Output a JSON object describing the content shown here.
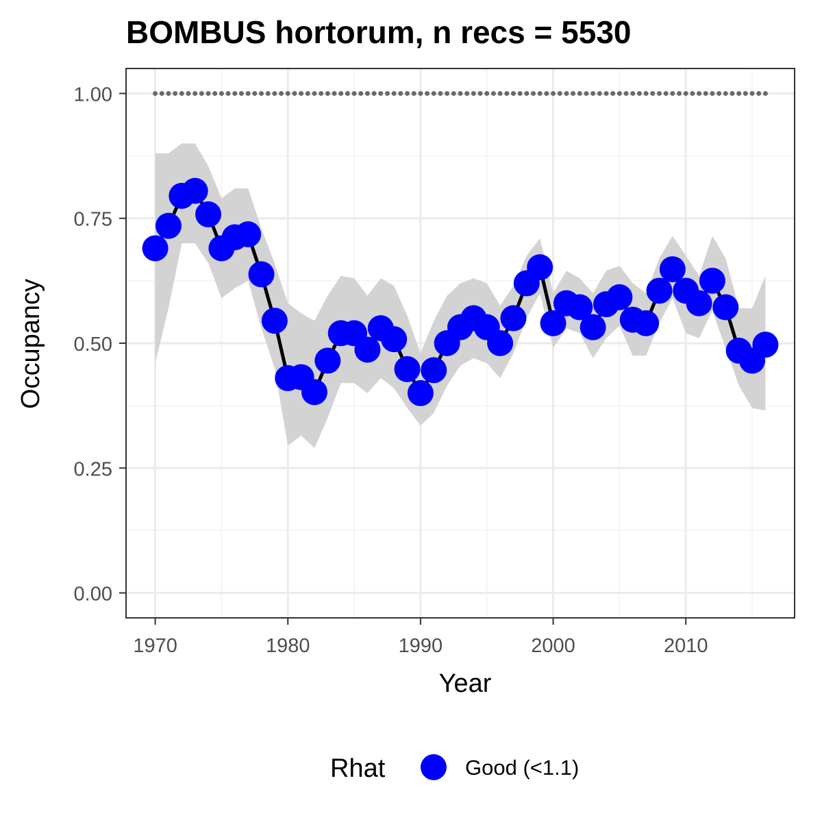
{
  "chart_data": {
    "type": "line",
    "title": "BOMBUS hortorum, n recs = 5530",
    "xlabel": "Year",
    "ylabel": "Occupancy",
    "xlim": [
      1967.8,
      2018.2
    ],
    "ylim": [
      -0.05,
      1.05
    ],
    "x_ticks": [
      1970,
      1980,
      1990,
      2000,
      2010
    ],
    "y_ticks": [
      0,
      0.25,
      0.5,
      0.75,
      1
    ],
    "y_tick_labels": [
      "0.00",
      "0.25",
      "0.50",
      "0.75",
      "1.00"
    ],
    "grid": true,
    "legend": {
      "title": "Rhat",
      "position": "bottom",
      "entries": [
        {
          "label": "Good (<1.1)",
          "color": "#0000ff"
        }
      ]
    },
    "colors": {
      "points": "#0000ff",
      "line": "#000000",
      "ribbon": "#d3d3d3",
      "reference": "#696969"
    },
    "years": [
      1970,
      1971,
      1972,
      1973,
      1974,
      1975,
      1976,
      1977,
      1978,
      1979,
      1980,
      1981,
      1982,
      1983,
      1984,
      1985,
      1986,
      1987,
      1988,
      1989,
      1990,
      1991,
      1992,
      1993,
      1994,
      1995,
      1996,
      1997,
      1998,
      1999,
      2000,
      2001,
      2002,
      2003,
      2004,
      2005,
      2006,
      2007,
      2008,
      2009,
      2010,
      2011,
      2012,
      2013,
      2014,
      2015,
      2016
    ],
    "series": [
      {
        "values": [
          0.69,
          0.735,
          0.795,
          0.805,
          0.758,
          0.69,
          0.712,
          0.718,
          0.638,
          0.545,
          0.43,
          0.432,
          0.402,
          0.465,
          0.52,
          0.52,
          0.487,
          0.53,
          0.508,
          0.448,
          0.4,
          0.446,
          0.5,
          0.532,
          0.55,
          0.532,
          0.5,
          0.55,
          0.62,
          0.652,
          0.54,
          0.58,
          0.572,
          0.532,
          0.578,
          0.592,
          0.547,
          0.54,
          0.605,
          0.648,
          0.605,
          0.58,
          0.625,
          0.572,
          0.485,
          0.465,
          0.497
        ]
      },
      {
        "values": [
          0.88,
          0.88,
          0.9,
          0.9,
          0.855,
          0.79,
          0.81,
          0.81,
          0.73,
          0.66,
          0.58,
          0.56,
          0.545,
          0.595,
          0.635,
          0.63,
          0.595,
          0.63,
          0.615,
          0.555,
          0.48,
          0.545,
          0.595,
          0.62,
          0.63,
          0.62,
          0.575,
          0.615,
          0.675,
          0.71,
          0.6,
          0.645,
          0.63,
          0.6,
          0.645,
          0.655,
          0.62,
          0.6,
          0.67,
          0.715,
          0.675,
          0.635,
          0.715,
          0.67,
          0.57,
          0.57,
          0.635
        ]
      },
      {
        "values": [
          0.46,
          0.57,
          0.7,
          0.7,
          0.66,
          0.59,
          0.61,
          0.625,
          0.53,
          0.45,
          0.295,
          0.315,
          0.29,
          0.35,
          0.42,
          0.42,
          0.4,
          0.43,
          0.41,
          0.37,
          0.335,
          0.36,
          0.415,
          0.455,
          0.47,
          0.46,
          0.43,
          0.48,
          0.55,
          0.6,
          0.49,
          0.53,
          0.52,
          0.47,
          0.51,
          0.535,
          0.475,
          0.475,
          0.54,
          0.59,
          0.52,
          0.51,
          0.565,
          0.49,
          0.415,
          0.37,
          0.365
        ]
      },
      {
        "values": [
          1,
          1,
          1,
          1,
          1,
          1,
          1,
          1,
          1,
          1,
          1,
          1,
          1,
          1,
          1,
          1,
          1,
          1,
          1,
          1,
          1,
          1,
          1,
          1,
          1,
          1,
          1,
          1,
          1,
          1,
          1,
          1,
          1,
          1,
          1,
          1,
          1,
          1,
          1,
          1,
          1,
          1,
          1,
          1,
          1,
          1,
          1
        ]
      }
    ]
  }
}
